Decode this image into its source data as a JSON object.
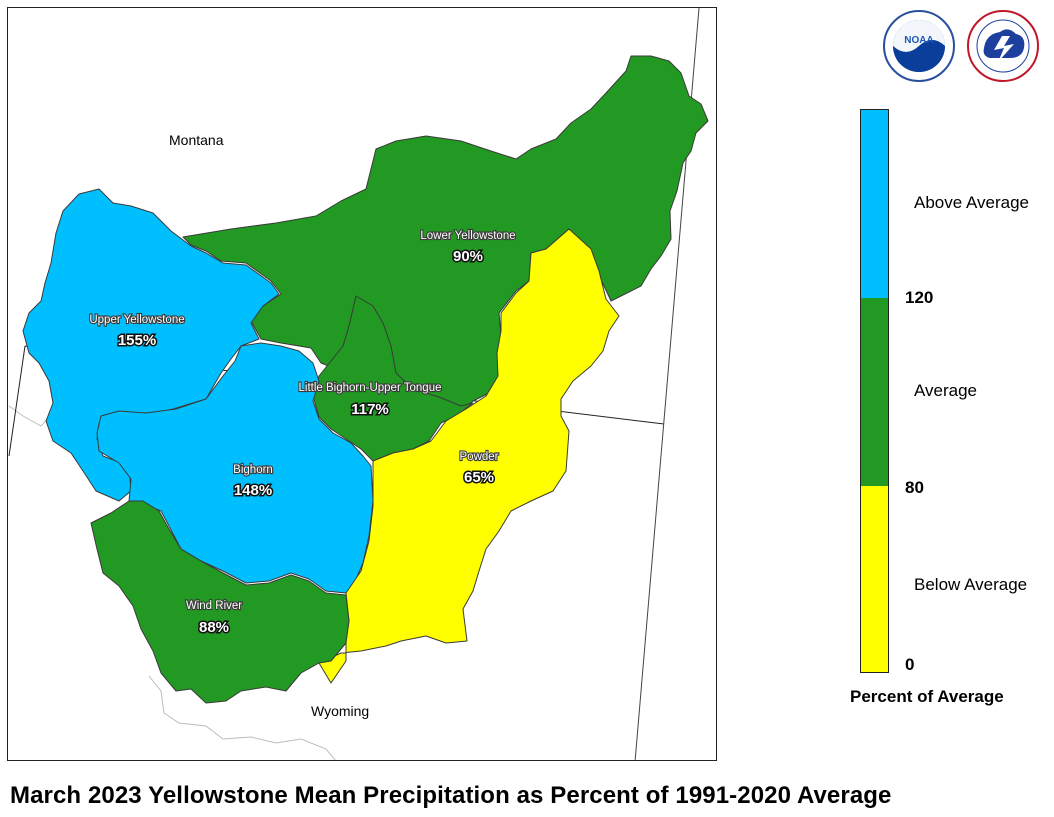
{
  "map": {
    "state_labels": {
      "montana": "Montana",
      "wyoming": "Wyoming"
    },
    "basins": [
      {
        "key": "upper_yellowstone",
        "name": "Upper Yellowstone",
        "value": "155%",
        "category": "Above Average"
      },
      {
        "key": "lower_yellowstone",
        "name": "Lower Yellowstone",
        "value": "90%",
        "category": "Average"
      },
      {
        "key": "little_bighorn",
        "name": "Little Bighorn-Upper Tongue",
        "value": "117%",
        "category": "Average"
      },
      {
        "key": "bighorn",
        "name": "Bighorn",
        "value": "148%",
        "category": "Above Average"
      },
      {
        "key": "powder",
        "name": "Powder",
        "value": "65%",
        "category": "Below Average"
      },
      {
        "key": "wind_river",
        "name": "Wind River",
        "value": "88%",
        "category": "Average"
      }
    ]
  },
  "legend": {
    "title": "Percent of Average",
    "categories": [
      {
        "label": "Above Average",
        "color": "#00bfff"
      },
      {
        "label": "Average",
        "color": "#229922"
      },
      {
        "label": "Below Average",
        "color": "#ffff00"
      }
    ],
    "ticks": [
      "120",
      "80",
      "0"
    ]
  },
  "logos": {
    "noaa_text": "NOAA",
    "nws_icon": "nws-logo-icon",
    "noaa_icon": "noaa-logo-icon"
  },
  "footer": {
    "title": "March 2023 Yellowstone Mean Precipitation as Percent of 1991-2020 Average"
  }
}
